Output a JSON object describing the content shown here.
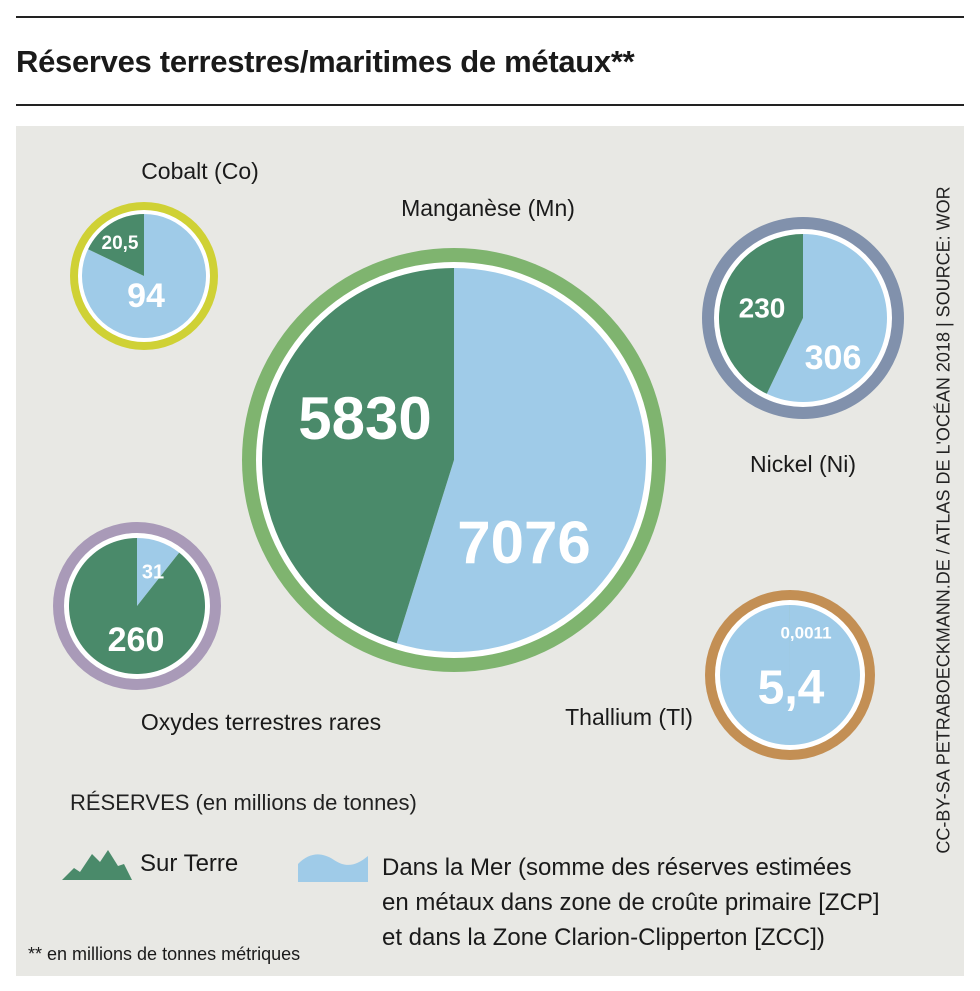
{
  "title": "Réserves terrestres/maritimes de métaux**",
  "credit": "CC-BY-SA PETRABOECKMANN.DE / ATLAS DE L'OCÉAN 2018 | SOURCE: WOR",
  "legend": {
    "title": "RÉSERVES (en millions de tonnes)",
    "land_label": "Sur Terre",
    "sea_lines": [
      "Dans la Mer (somme des réserves estimées",
      "en métaux dans zone de croûte primaire [ZCP]",
      "et dans la Zone Clarion-Clipperton [ZCC])"
    ]
  },
  "footnote": "** en millions de tonnes métriques",
  "colors": {
    "land": "#4a8a6a",
    "sea": "#9fcbe8",
    "background": "#e8e8e4"
  },
  "chart_data": {
    "type": "pie",
    "unit": "millions de tonnes",
    "series_names": [
      "Sur Terre",
      "Dans la Mer"
    ],
    "pies": [
      {
        "name": "Manganèse (Mn)",
        "land": 5830,
        "sea": 7076,
        "land_label": "5830",
        "sea_label": "7076",
        "ring_color": "#7fb46f"
      },
      {
        "name": "Cobalt (Co)",
        "land": 20.5,
        "sea": 94,
        "land_label": "20,5",
        "sea_label": "94",
        "ring_color": "#cfd135"
      },
      {
        "name": "Nickel (Ni)",
        "land": 230,
        "sea": 306,
        "land_label": "230",
        "sea_label": "306",
        "ring_color": "#8191ac"
      },
      {
        "name": "Oxydes terrestres rares",
        "land": 260,
        "sea": 31,
        "land_label": "260",
        "sea_label": "31",
        "ring_color": "#a99ab8"
      },
      {
        "name": "Thallium (Tl)",
        "land": 0.0011,
        "sea": 5.4,
        "land_label": "0,0011",
        "sea_label": "5,4",
        "ring_color": "#c38f54"
      }
    ]
  }
}
